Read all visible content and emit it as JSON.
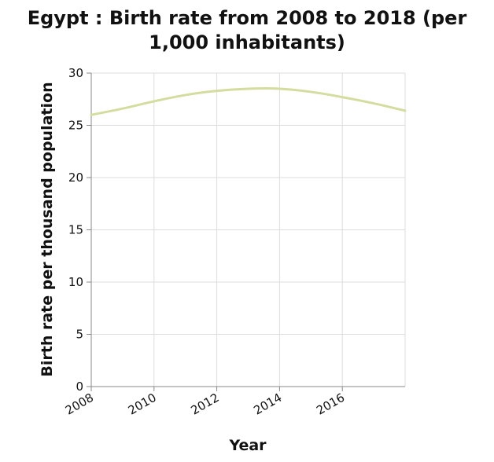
{
  "chart_data": {
    "type": "line",
    "title_line1": "Egypt : Birth rate from 2008 to 2018 (per",
    "title_line2": "1,000 inhabitants)",
    "xlabel": "Year",
    "ylabel": "Birth rate per thousand population",
    "xlim": [
      2008,
      2018
    ],
    "ylim": [
      0,
      30
    ],
    "x_ticks": [
      2008,
      2010,
      2012,
      2014,
      2016
    ],
    "y_ticks": [
      0,
      5,
      10,
      15,
      20,
      25,
      30
    ],
    "grid": true,
    "line_color": "#d4dd9f",
    "series": [
      {
        "x": [
          2008,
          2009,
          2010,
          2011,
          2012,
          2013,
          2014,
          2015,
          2016,
          2017,
          2018
        ],
        "values": [
          26.0,
          26.6,
          27.3,
          27.9,
          28.3,
          28.5,
          28.5,
          28.2,
          27.7,
          27.1,
          26.4
        ]
      }
    ]
  }
}
